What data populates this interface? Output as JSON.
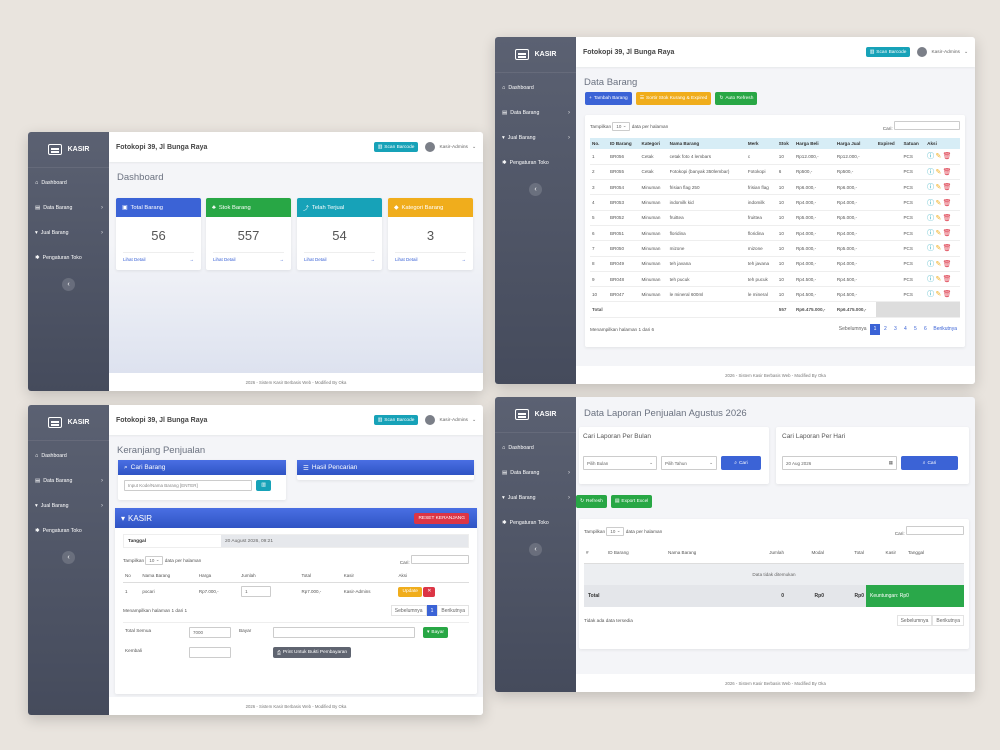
{
  "common": {
    "brand": "KASIR",
    "store": "Fotokopi 39, Jl Bunga Raya",
    "scan_barcode": "Scan Barcode",
    "user": "Kasir-Admins",
    "footer": "2026 - Sistem Kasir Berbasis Web - Modified By Oka",
    "nav": [
      "Dashboard",
      "Data Barang",
      "Jual Barang",
      "Pengaturan Toko"
    ]
  },
  "dashboard": {
    "title": "Dashboard",
    "more": "Lihat Detail",
    "cards": [
      {
        "label": "Total Barang",
        "value": "56",
        "color": "#3b63d6"
      },
      {
        "label": "Stok Barang",
        "value": "557",
        "color": "#28a745"
      },
      {
        "label": "Telah Terjual",
        "value": "54",
        "color": "#17a2b8"
      },
      {
        "label": "Kategori Barang",
        "value": "3",
        "color": "#f0ad1c"
      }
    ]
  },
  "barang": {
    "title": "Data Barang",
    "btn_add": "Tambah Barang",
    "btn_sort": "Sortir Stok Kurang & Expired",
    "btn_refresh": "Auto Refresh",
    "show": "Tampilkan",
    "show_count": "10",
    "per_page": "data per halaman",
    "search": "Cari:",
    "headers": [
      "No.",
      "ID Barang",
      "Kategori",
      "Nama Barang",
      "Merk",
      "Stok",
      "Harga Beli",
      "Harga Jual",
      "Expired",
      "Satuan",
      "Aksi"
    ],
    "rows": [
      [
        "1",
        "BR056",
        "Cetak",
        "cetak foto 4 lembars",
        "c",
        "10",
        "Rp12.000,-",
        "Rp12.000,-",
        "",
        "PCS"
      ],
      [
        "2",
        "BR055",
        "Cetak",
        "Fotokopi (banyak 350lembar)",
        "Fotokopi",
        "6",
        "Rp500,-",
        "Rp500,-",
        "",
        "PCS"
      ],
      [
        "3",
        "BR054",
        "Minuman",
        "frisian flag 250",
        "frisian flag",
        "10",
        "Rp6.000,-",
        "Rp6.000,-",
        "",
        "PCS"
      ],
      [
        "4",
        "BR053",
        "Minuman",
        "indomilk kid",
        "indomilk",
        "10",
        "Rp4.000,-",
        "Rp4.000,-",
        "",
        "PCS"
      ],
      [
        "5",
        "BR052",
        "Minuman",
        "fruittea",
        "fruittea",
        "10",
        "Rp5.000,-",
        "Rp5.000,-",
        "",
        "PCS"
      ],
      [
        "6",
        "BR051",
        "Minuman",
        "floridina",
        "floridina",
        "10",
        "Rp4.000,-",
        "Rp4.000,-",
        "",
        "PCS"
      ],
      [
        "7",
        "BR050",
        "Minuman",
        "mizone",
        "mizone",
        "10",
        "Rp5.000,-",
        "Rp5.000,-",
        "",
        "PCS"
      ],
      [
        "8",
        "BR049",
        "Minuman",
        "teh javana",
        "teh javana",
        "10",
        "Rp4.000,-",
        "Rp4.000,-",
        "",
        "PCS"
      ],
      [
        "9",
        "BR048",
        "Minuman",
        "teh pucuk",
        "teh pucuk",
        "10",
        "Rp4.500,-",
        "Rp4.500,-",
        "",
        "PCS"
      ],
      [
        "10",
        "BR047",
        "Minuman",
        "le mineral 600ml",
        "le mineral",
        "10",
        "Rp4.500,-",
        "Rp4.500,-",
        "",
        "PCS"
      ]
    ],
    "total_label": "Total",
    "total_stok": "557",
    "total_beli": "Rp6.475.000,-",
    "total_jual": "Rp6.475.000,-",
    "info": "Menampilkan halaman 1 dari 6",
    "prev": "Sebelumnya",
    "next": "Berikutnya",
    "pages": [
      "1",
      "2",
      "3",
      "4",
      "5",
      "6"
    ]
  },
  "keranjang": {
    "title": "Keranjang Penjualan",
    "cari_barang": "Cari Barang",
    "hasil": "Hasil Pencarian",
    "input_ph": "Input Kode/Nama Barang [ENTER]",
    "kasir": "KASIR",
    "reset": "RESET KERANJANG",
    "tanggal_label": "Tanggal",
    "tanggal": "20 August 2026, 09:21",
    "show": "Tampilkan",
    "show_count": "10",
    "per_page": "data per halaman",
    "search": "Cari:",
    "headers": [
      "No",
      "Nama Barang",
      "Harga",
      "Jumlah",
      "Total",
      "Kasir",
      "Aksi"
    ],
    "row": {
      "no": "1",
      "nama": "pocari",
      "harga": "Rp7.000,-",
      "jumlah": "1",
      "total": "Rp7.000,-",
      "kasir": "Kasir-Admins",
      "update": "Update"
    },
    "info": "Menampilkan halaman 1 dari 1",
    "prev": "Sebelumnya",
    "next": "Berikutnya",
    "page": "1",
    "total_label": "Total Semua",
    "total_val": "7000",
    "bayar_label": "Bayar",
    "bayar_btn": "Bayar",
    "kembali_label": "Kembali",
    "print_btn": "Print Untuk Bukti Pembayaran"
  },
  "laporan": {
    "title": "Data Laporan Penjualan Agustus 2026",
    "per_bulan": "Cari Laporan Per Bulan",
    "per_hari": "Cari Laporan Per Hari",
    "pilih_bulan": "Pilih Bulan",
    "pilih_tahun": "Pilih Tahun",
    "cari": "Cari",
    "date": "20 Aug 2026",
    "refresh": "Refresh",
    "export": "Export Excel",
    "show": "Tampilkan",
    "show_count": "10",
    "per_page": "data per halaman",
    "search": "Cari:",
    "headers": [
      "#",
      "ID Barang",
      "Nama Barang",
      "Jumlah",
      "Modal",
      "Total",
      "Kasir",
      "Tanggal"
    ],
    "empty": "Data tidak ditemukan",
    "total_label": "Total",
    "total_jumlah": "0",
    "total_modal": "Rp0",
    "total_total": "Rp0",
    "keuntungan": "Keuntungan: Rp0",
    "info": "Tidak ada data tersedia",
    "prev": "Sebelumnya",
    "next": "Berikutnya"
  }
}
